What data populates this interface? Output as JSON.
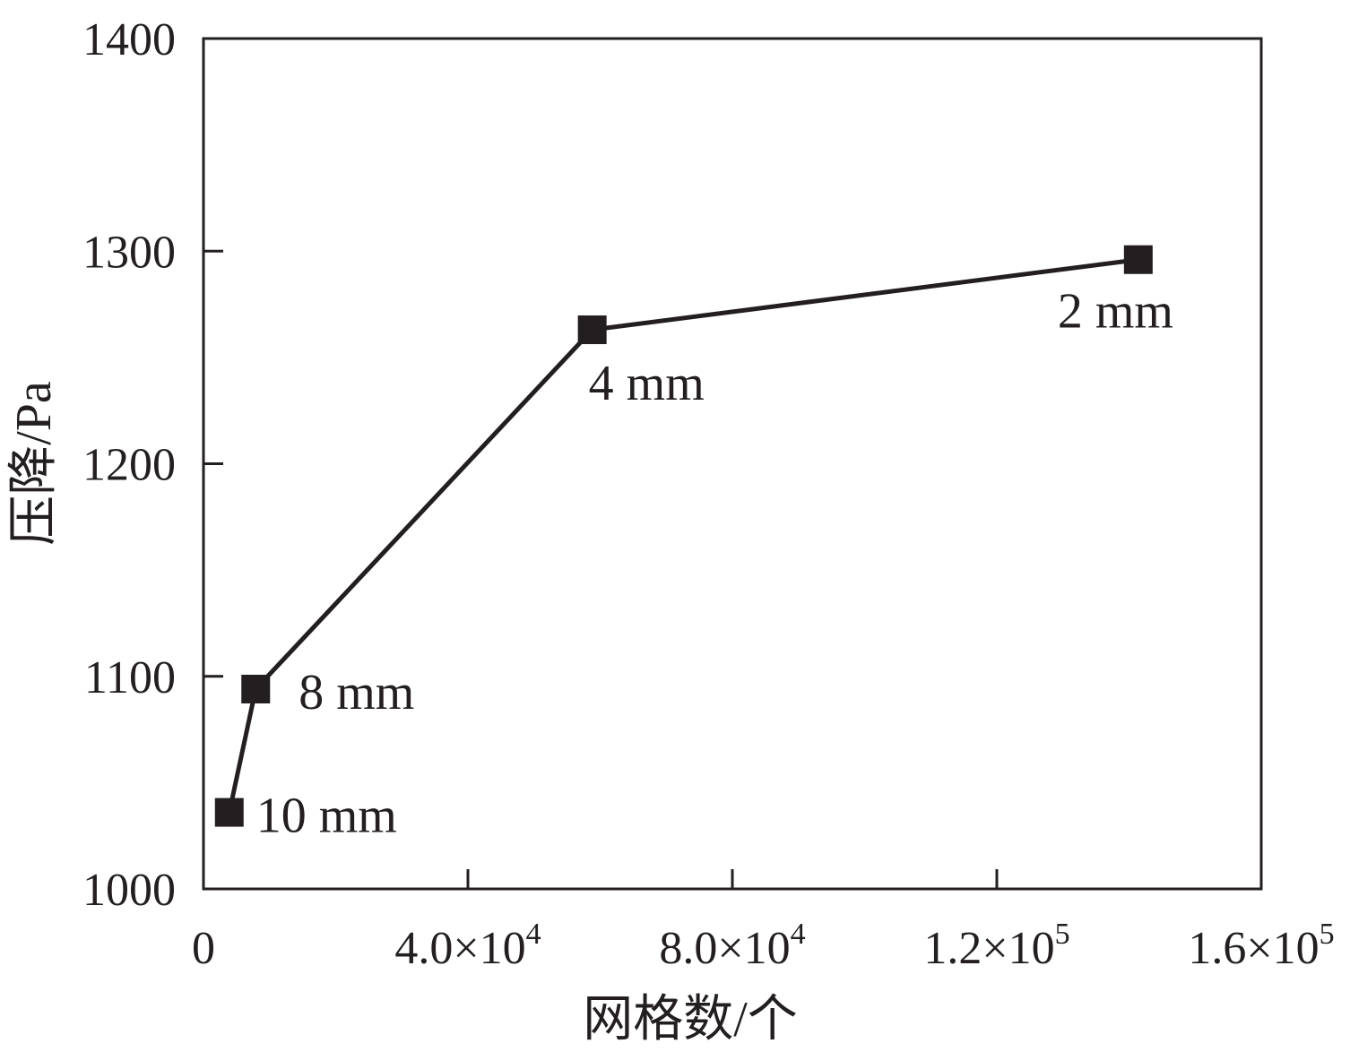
{
  "chart_data": {
    "type": "line",
    "title": "",
    "xlabel": "网格数/个",
    "ylabel": "压降/Pa",
    "xlim": [
      0,
      160000
    ],
    "ylim": [
      1000,
      1400
    ],
    "x_ticks": [
      {
        "value": 0,
        "mantissa": "0",
        "exponent": ""
      },
      {
        "value": 40000,
        "mantissa": "4.0×10",
        "exponent": "4"
      },
      {
        "value": 80000,
        "mantissa": "8.0×10",
        "exponent": "4"
      },
      {
        "value": 120000,
        "mantissa": "1.2×10",
        "exponent": "5"
      },
      {
        "value": 160000,
        "mantissa": "1.6×10",
        "exponent": "5"
      }
    ],
    "y_ticks": [
      {
        "value": 1000,
        "label": "1000"
      },
      {
        "value": 1100,
        "label": "1100"
      },
      {
        "value": 1200,
        "label": "1200"
      },
      {
        "value": 1300,
        "label": "1300"
      },
      {
        "value": 1400,
        "label": "1400"
      }
    ],
    "grid": false,
    "legend": "none",
    "series": [
      {
        "marker": "square",
        "color": "#231f20",
        "points": [
          {
            "x": 3900,
            "y": 1036,
            "label": "10 mm"
          },
          {
            "x": 7900,
            "y": 1094,
            "label": "8 mm"
          },
          {
            "x": 58800,
            "y": 1263,
            "label": "4 mm"
          },
          {
            "x": 141400,
            "y": 1296,
            "label": "2 mm"
          }
        ]
      }
    ]
  }
}
